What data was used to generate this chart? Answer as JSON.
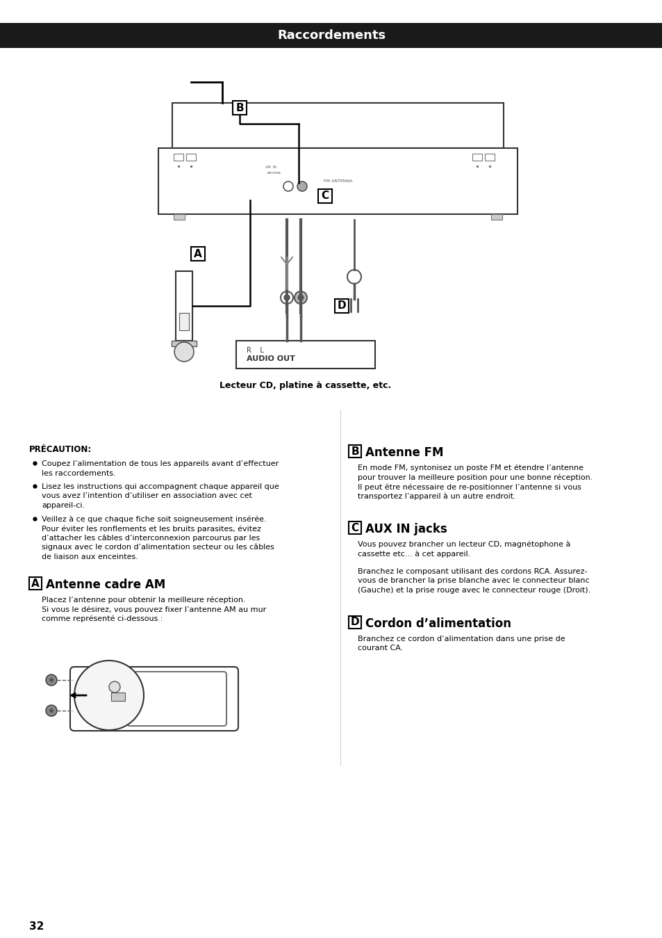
{
  "title": "Raccordements",
  "title_bg": "#1a1a1a",
  "title_color": "#ffffff",
  "page_bg": "#ffffff",
  "page_number": "32",
  "section_a_header_letter": "A",
  "section_a_header_text": "Antenne cadre AM",
  "section_a_text1": "Placez l’antenne pour obtenir la meilleure réception.",
  "section_a_text2": "Si vous le désirez, vous pouvez fixer l’antenne AM au mur\ncomme représenté ci-dessous :",
  "section_b_header_letter": "B",
  "section_b_header_text": "Antenne FM",
  "section_b_text": "En mode FM, syntonisez un poste FM et étendre l’antenne\npour trouver la meilleure position pour une bonne réception.\nIl peut être nécessaire de re-positionner l’antenne si vous\ntransportez l’appareil à un autre endroit.",
  "section_c_header_letter": "C",
  "section_c_header_text": "AUX IN jacks",
  "section_c_text1": "Vous pouvez brancher un lecteur CD, magnétophone à\ncassette etc... à cet appareil.",
  "section_c_text2": "Branchez le composant utilisant des cordons RCA. Assurez-\nvous de brancher la prise blanche avec le connecteur blanc\n(Gauche) et la prise rouge avec le connecteur rouge (Droit).",
  "section_d_header_letter": "D",
  "section_d_header_text": "Cordon d’alimentation",
  "section_d_text": "Branchez ce cordon d’alimentation dans une prise de\ncourant CA.",
  "precaution_header": "PRÉCAUTION:",
  "precaution_items": [
    "Coupez l’alimentation de tous les appareils avant d’effectuer\nles raccordements.",
    "Lisez les instructions qui accompagnent chaque appareil que\nvous avez l’intention d’utiliser en association avec cet\nappareil-ci.",
    "Veillez à ce que chaque fiche soit soigneusement insérée.\nPour éviter les ronflements et les bruits parasites, évitez\nd’attacher les câbles d’interconnexion parcourus par les\nsignaux avec le cordon d’alimentation secteur ou les câbles\nde liaison aux enceintes."
  ],
  "lecteur_label": "Lecteur CD, platine à cassette, etc.",
  "audio_out_label": "AUDIO OUT",
  "rl_label": "R    L"
}
